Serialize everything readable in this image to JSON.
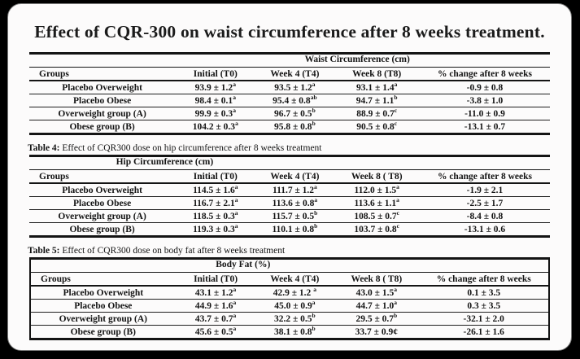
{
  "title": "Effect of CQR-300 on waist circumference after 8 weeks treatment.",
  "colors": {
    "background": "#000000",
    "card": "#fcfbfb",
    "ink": "#141414"
  },
  "tables": [
    {
      "span_header": "Waist Circumference  (cm)",
      "columns": [
        "Groups",
        "Initial (T0)",
        "Week 4  (T4)",
        "Week 8 (T8)",
        "% change  after 8 weeks"
      ],
      "rows": [
        [
          "Placebo Overweight",
          "93.9 ± 1.2^a",
          "93.5 ± 1.2^a",
          "93.1 ± 1.4^a",
          "-0.9 ± 0.8"
        ],
        [
          "Placebo Obese",
          "98.4 ± 0.1^a",
          "95.4 ± 0.8^ab",
          "94.7 ± 1.1^b",
          "-3.8 ± 1.0"
        ],
        [
          "Overweight  group (A)",
          "99.9 ± 0.3^a",
          "96.7 ± 0.5^b",
          "88.9 ± 0.7^c",
          "-11.0 ± 0.9"
        ],
        [
          "Obese group (B)",
          "104.2 ± 0.3^a",
          "95.8 ± 0.8^b",
          "90.5 ± 0.8^c",
          "-13.1 ± 0.7"
        ]
      ]
    },
    {
      "caption_label": "Table 4:",
      "caption_text": "Effect of CQR300 dose on hip circumference after 8 weeks treatment",
      "span_header": "Hip Circumference (cm)",
      "columns": [
        "Groups",
        "Initial (T0)",
        "Week 4  (T4)",
        "Week 8 ( T8)",
        "% change  after 8 weeks"
      ],
      "rows": [
        [
          "Placebo Overweight",
          "114.5 ± 1.6^a",
          "111.7 ± 1.2^a",
          "112.0 ± 1.5^a",
          "-1.9 ± 2.1"
        ],
        [
          "Placebo Obese",
          "116.7 ± 2.1^a",
          "113.6 ± 0.8^a",
          "113.6 ± 1.1^a",
          "-2.5 ± 1.7"
        ],
        [
          "Overweight  group (A)",
          "118.5 ± 0.3^a",
          "115.7 ± 0.5^b",
          "108.5 ± 0.7^c",
          "-8.4 ± 0.8"
        ],
        [
          "Obese group (B)",
          "119.3 ± 0.3^a",
          "110.1 ± 0.8^b",
          "103.7 ± 0.8^c",
          "-13.1 ± 0.6"
        ]
      ]
    },
    {
      "caption_label": "Table 5:",
      "caption_text": "Effect of CQR300 dose on body fat after 8 weeks treatment",
      "span_header": "Body Fat (%)",
      "columns": [
        "Groups",
        "Initial (T0)",
        "Week 4  (T4)",
        "Week 8 ( T8)",
        "% change after 8 weeks"
      ],
      "rows": [
        [
          "Placebo Overweight",
          "43.1 ± 1.2^a",
          "42.9 ± 1.2 ^a",
          "43.0 ± 1.5^a",
          "0.1 ± 3.5"
        ],
        [
          "Placebo  Obese",
          "44.9 ± 1.6^a",
          "45.0 ± 0.9^a",
          "44.7 ± 1.0^a",
          "0.3 ± 3.5"
        ],
        [
          "Overweight  group (A)",
          "43.7 ± 0.7^a",
          "32.2 ± 0.5^b",
          "29.5 ± 0.7^b",
          "-32.1 ± 2.0"
        ],
        [
          "Obese  group (B)",
          "45.6 ± 0.5^a",
          "38.1 ± 0.8^b",
          "33.7 ± 0.9¢",
          "-26.1 ± 1.6"
        ]
      ]
    }
  ]
}
